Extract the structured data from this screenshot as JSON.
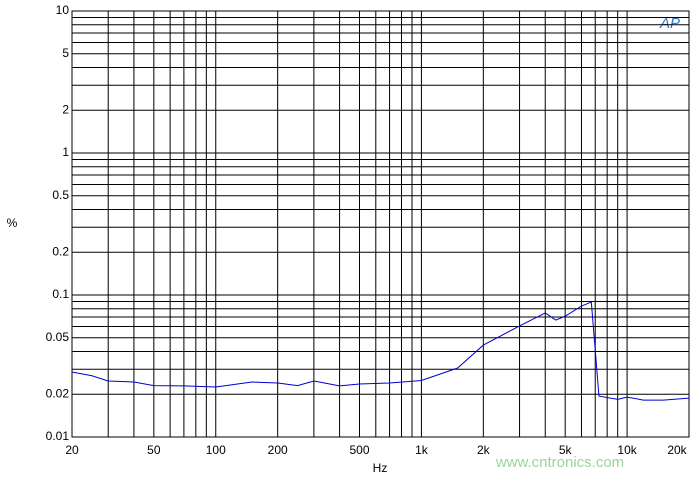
{
  "chart_data": {
    "type": "line",
    "x_label": "Hz",
    "y_label": "%",
    "logo": "AP",
    "watermark": "www.cntronics.com",
    "xscale": "log",
    "yscale": "log",
    "grid": true,
    "xlim": [
      20,
      20000
    ],
    "ylim": [
      0.01,
      10
    ],
    "xticks": [
      20,
      50,
      100,
      200,
      500,
      {
        "value": 1000,
        "label": "1k"
      },
      {
        "value": 2000,
        "label": "2k"
      },
      {
        "value": 5000,
        "label": "5k"
      },
      {
        "value": 10000,
        "label": "10k"
      },
      {
        "value": 20000,
        "label": "20k"
      }
    ],
    "xminor": [
      30,
      40,
      60,
      70,
      80,
      90,
      300,
      400,
      600,
      700,
      800,
      900,
      3000,
      4000,
      6000,
      7000,
      8000,
      9000
    ],
    "yticks": [
      10,
      5,
      2,
      1,
      0.5,
      0.2,
      0.1,
      0.05,
      0.02,
      0.01
    ],
    "yminor": [
      9,
      8,
      7,
      6,
      4,
      3,
      0.9,
      0.8,
      0.7,
      0.6,
      0.4,
      0.3,
      0.09,
      0.08,
      0.07,
      0.06,
      0.04,
      0.03
    ],
    "x": [
      20,
      25,
      30,
      40,
      50,
      70,
      100,
      150,
      200,
      250,
      300,
      400,
      500,
      700,
      1000,
      1500,
      2000,
      3000,
      4000,
      4500,
      5000,
      6000,
      6700,
      7300,
      9000,
      10000,
      12000,
      15000,
      20000
    ],
    "series": [
      {
        "color": "#0000cc",
        "values": [
          0.0287,
          0.027,
          0.0248,
          0.0244,
          0.023,
          0.0229,
          0.0225,
          0.0244,
          0.024,
          0.023,
          0.0248,
          0.0229,
          0.0236,
          0.024,
          0.025,
          0.0306,
          0.0444,
          0.0605,
          0.0748,
          0.0666,
          0.071,
          0.0836,
          0.0892,
          0.0194,
          0.0184,
          0.0191,
          0.0182,
          0.0182,
          0.0188
        ]
      }
    ]
  }
}
